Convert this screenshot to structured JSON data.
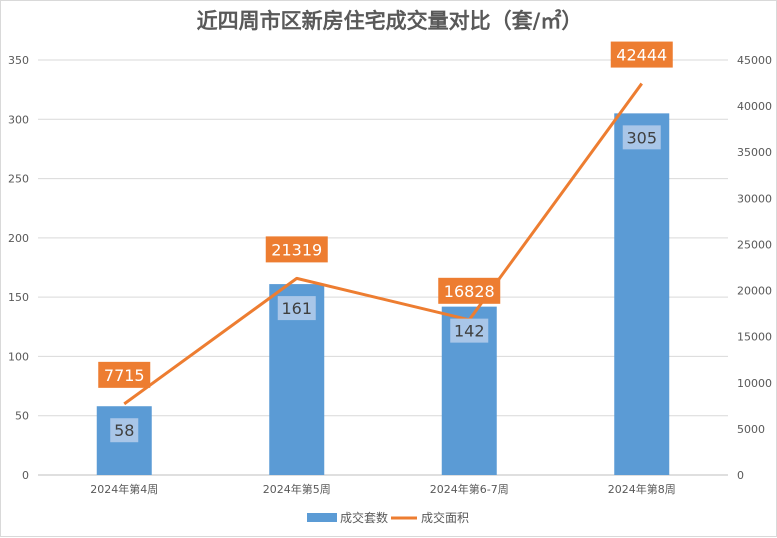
{
  "chart_data": {
    "type": "bar",
    "title": "近四周市区新房住宅成交量对比（套/㎡）",
    "categories": [
      "2024年第4周",
      "2024年第5周",
      "2024年第6-7周",
      "2024年第8周"
    ],
    "series": [
      {
        "name": "成交套数",
        "type": "bar",
        "axis": "left",
        "values": [
          58,
          161,
          142,
          305
        ],
        "color": "#5b9bd5"
      },
      {
        "name": "成交面积",
        "type": "line",
        "axis": "right",
        "values": [
          7715,
          21319,
          16828,
          42444
        ],
        "color": "#ed7d31"
      }
    ],
    "y_left": {
      "min": 0,
      "max": 350,
      "ticks": [
        0,
        50,
        100,
        150,
        200,
        250,
        300,
        350
      ]
    },
    "y_right": {
      "min": 0,
      "max": 45000,
      "ticks": [
        0,
        5000,
        10000,
        15000,
        20000,
        25000,
        30000,
        35000,
        40000,
        45000
      ]
    },
    "grid": true,
    "legend_position": "bottom"
  }
}
